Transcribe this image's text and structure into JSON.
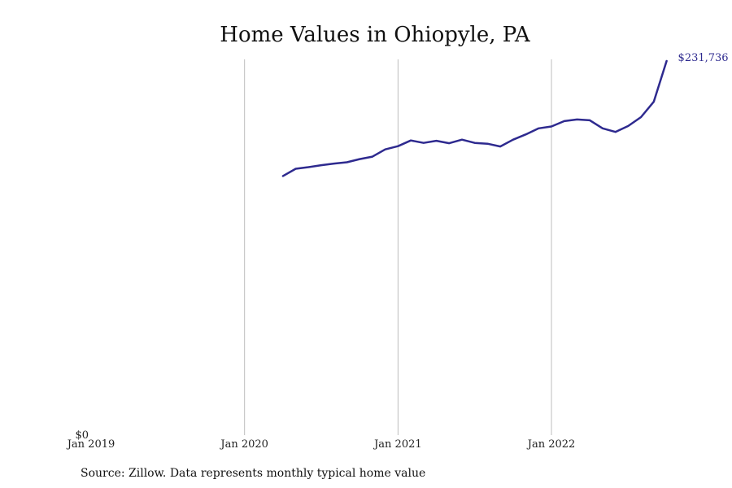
{
  "chart_data": {
    "type": "line",
    "title": "Home Values in Ohiopyle, PA",
    "xlabel": "",
    "ylabel": "",
    "x_ticks": [
      "Jan 2019",
      "Jan 2020",
      "Jan 2021",
      "Jan 2022"
    ],
    "y_ticks": [
      "$0"
    ],
    "ylim": [
      0,
      231736
    ],
    "xlim": [
      "2019-01",
      "2022-12"
    ],
    "grid": "vertical",
    "series": [
      {
        "color": "#2e2a8f",
        "end_label": "$231,736",
        "points": [
          {
            "x": "2020-04",
            "y": 160500
          },
          {
            "x": "2020-05",
            "y": 165000
          },
          {
            "x": "2020-06",
            "y": 166000
          },
          {
            "x": "2020-07",
            "y": 167200
          },
          {
            "x": "2020-08",
            "y": 168200
          },
          {
            "x": "2020-09",
            "y": 169000
          },
          {
            "x": "2020-10",
            "y": 171000
          },
          {
            "x": "2020-11",
            "y": 172500
          },
          {
            "x": "2020-12",
            "y": 177000
          },
          {
            "x": "2021-01",
            "y": 179000
          },
          {
            "x": "2021-02",
            "y": 182500
          },
          {
            "x": "2021-03",
            "y": 181000
          },
          {
            "x": "2021-04",
            "y": 182300
          },
          {
            "x": "2021-05",
            "y": 180800
          },
          {
            "x": "2021-06",
            "y": 183000
          },
          {
            "x": "2021-07",
            "y": 181000
          },
          {
            "x": "2021-08",
            "y": 180500
          },
          {
            "x": "2021-09",
            "y": 178800
          },
          {
            "x": "2021-10",
            "y": 183000
          },
          {
            "x": "2021-11",
            "y": 186300
          },
          {
            "x": "2021-12",
            "y": 190000
          },
          {
            "x": "2022-01",
            "y": 191200
          },
          {
            "x": "2022-02",
            "y": 194500
          },
          {
            "x": "2022-03",
            "y": 195500
          },
          {
            "x": "2022-04",
            "y": 195000
          },
          {
            "x": "2022-05",
            "y": 190000
          },
          {
            "x": "2022-06",
            "y": 187800
          },
          {
            "x": "2022-07",
            "y": 191500
          },
          {
            "x": "2022-08",
            "y": 197000
          },
          {
            "x": "2022-09",
            "y": 206500
          },
          {
            "x": "2022-10",
            "y": 231736
          }
        ]
      }
    ]
  },
  "source_note": "Source: Zillow. Data represents monthly typical home value"
}
